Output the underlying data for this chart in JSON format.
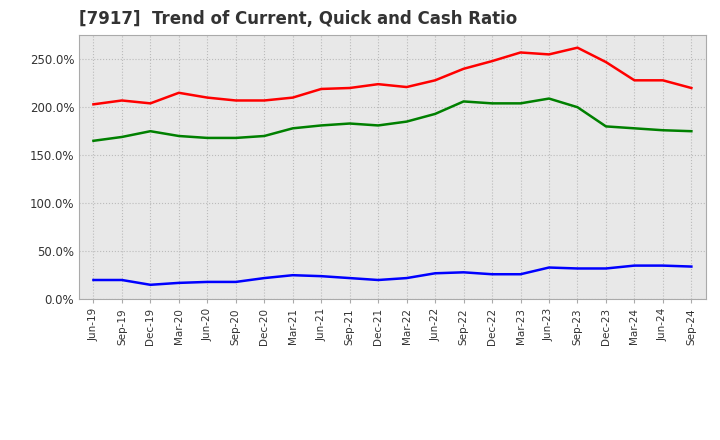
{
  "title": "[7917]  Trend of Current, Quick and Cash Ratio",
  "x_labels": [
    "Jun-19",
    "Sep-19",
    "Dec-19",
    "Mar-20",
    "Jun-20",
    "Sep-20",
    "Dec-20",
    "Mar-21",
    "Jun-21",
    "Sep-21",
    "Dec-21",
    "Mar-22",
    "Jun-22",
    "Sep-22",
    "Dec-22",
    "Mar-23",
    "Jun-23",
    "Sep-23",
    "Dec-23",
    "Mar-24",
    "Jun-24",
    "Sep-24"
  ],
  "current_ratio": [
    203,
    207,
    204,
    215,
    210,
    207,
    207,
    210,
    219,
    220,
    224,
    221,
    228,
    240,
    248,
    257,
    255,
    262,
    247,
    228,
    228,
    220
  ],
  "quick_ratio": [
    165,
    169,
    175,
    170,
    168,
    168,
    170,
    178,
    181,
    183,
    181,
    185,
    193,
    206,
    204,
    204,
    209,
    200,
    180,
    178,
    176,
    175
  ],
  "cash_ratio": [
    20,
    20,
    15,
    17,
    18,
    18,
    22,
    25,
    24,
    22,
    20,
    22,
    27,
    28,
    26,
    26,
    33,
    32,
    32,
    35,
    35,
    34
  ],
  "current_color": "#FF0000",
  "quick_color": "#008000",
  "cash_color": "#0000FF",
  "line_width": 1.8,
  "ylim": [
    0,
    275
  ],
  "yticks": [
    0,
    50,
    100,
    150,
    200,
    250
  ],
  "background_color": "#FFFFFF",
  "plot_bg_color": "#E8E8E8",
  "grid_color": "#BBBBBB",
  "title_fontsize": 12,
  "title_color": "#333333"
}
